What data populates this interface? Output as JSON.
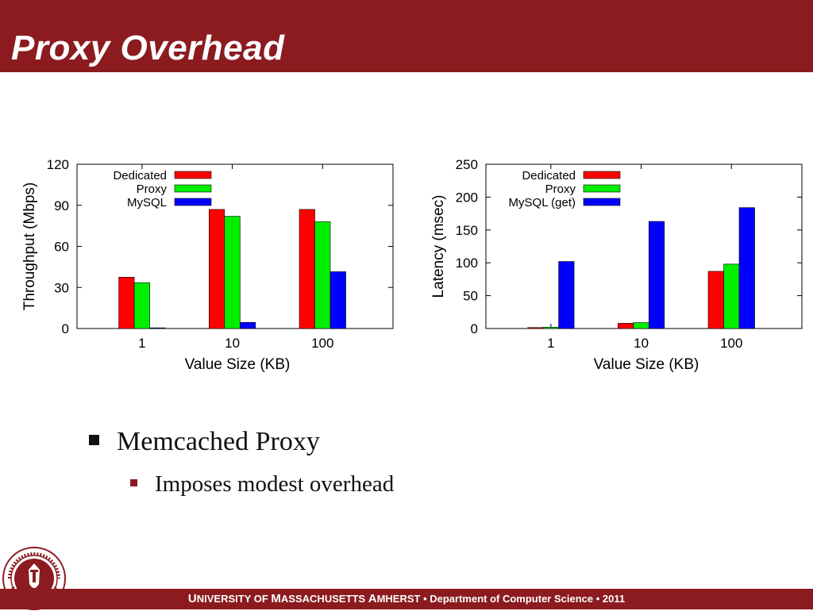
{
  "slide": {
    "title": "Proxy Overhead",
    "bullets": [
      {
        "text": "Memcached Proxy",
        "level": 1
      },
      {
        "text": "Imposes modest overhead",
        "level": 2
      }
    ],
    "footer": {
      "u1": "U",
      "u1_rest": "NIVERSITY OF ",
      "u2": "M",
      "u2_rest": "ASSACHUSETTS ",
      "u3": "A",
      "u3_rest": "MHERST",
      "sep1": " • ",
      "dept": "Department of Computer Science",
      "sep2": " • ",
      "year": "2011"
    },
    "seal_text": "UNIVERSITY OF MASSACHUSETTS AMHERST 1863",
    "colors": {
      "brand": "#8b1b1f",
      "dedicated": "#ff0000",
      "proxy": "#00ee00",
      "mysql": "#0000ff"
    }
  },
  "chart_data": [
    {
      "type": "bar",
      "categories": [
        "1",
        "10",
        "100"
      ],
      "series": [
        {
          "name": "Dedicated",
          "values": [
            37.5,
            87,
            87
          ],
          "color": "#ff0000"
        },
        {
          "name": "Proxy",
          "values": [
            33.5,
            82,
            78
          ],
          "color": "#00ee00"
        },
        {
          "name": "MySQL",
          "values": [
            0.5,
            4.5,
            41.5
          ],
          "color": "#0000ff"
        }
      ],
      "xlabel": "Value Size (KB)",
      "ylabel": "Throughput (Mbps)",
      "ylim": [
        0,
        120
      ],
      "yticks": [
        0,
        30,
        60,
        90,
        120
      ],
      "legend": "top-left"
    },
    {
      "type": "bar",
      "categories": [
        "1",
        "10",
        "100"
      ],
      "series": [
        {
          "name": "Dedicated",
          "values": [
            1.5,
            8,
            87
          ],
          "color": "#ff0000"
        },
        {
          "name": "Proxy",
          "values": [
            2,
            9,
            98
          ],
          "color": "#00ee00"
        },
        {
          "name": "MySQL (get)",
          "values": [
            102,
            163,
            184
          ],
          "color": "#0000ff"
        }
      ],
      "xlabel": "Value Size (KB)",
      "ylabel": "Latency (msec)",
      "ylim": [
        0,
        250
      ],
      "yticks": [
        0,
        50,
        100,
        150,
        200,
        250
      ],
      "legend": "top-left"
    }
  ]
}
